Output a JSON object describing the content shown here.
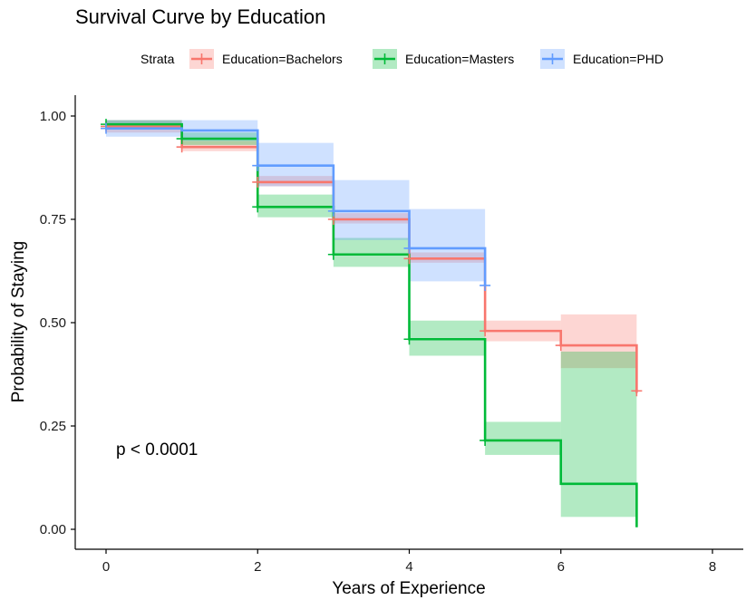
{
  "chart_data": {
    "type": "line",
    "title": "Survival Curve by Education",
    "xlabel": "Years of Experience",
    "ylabel": "Probability of Staying",
    "xlim": [
      0,
      8
    ],
    "ylim": [
      0,
      1
    ],
    "x_ticks": [
      "0",
      "2",
      "4",
      "6",
      "8"
    ],
    "y_ticks": [
      "0.00",
      "0.25",
      "0.50",
      "0.75",
      "1.00"
    ],
    "grid": false,
    "legend": {
      "title": "Strata",
      "position": "top"
    },
    "annotation": "p < 0.0001",
    "series": [
      {
        "name": "Education=Bachelors",
        "color": "#F8766D",
        "steps": [
          {
            "x0": 0,
            "x1": 1,
            "y": 0.975,
            "lo": 0.96,
            "hi": 0.99
          },
          {
            "x0": 1,
            "x1": 2,
            "y": 0.925,
            "lo": 0.915,
            "hi": 0.94
          },
          {
            "x0": 2,
            "x1": 3,
            "y": 0.84,
            "lo": 0.83,
            "hi": 0.855
          },
          {
            "x0": 3,
            "x1": 4,
            "y": 0.75,
            "lo": 0.74,
            "hi": 0.765
          },
          {
            "x0": 4,
            "x1": 5,
            "y": 0.655,
            "lo": 0.645,
            "hi": 0.67
          },
          {
            "x0": 5,
            "x1": 6,
            "y": 0.48,
            "lo": 0.455,
            "hi": 0.505
          },
          {
            "x0": 6,
            "x1": 7,
            "y": 0.445,
            "lo": 0.39,
            "hi": 0.52
          }
        ],
        "end_y": 0.33,
        "censor_x": [
          0,
          1,
          2,
          3,
          4,
          5,
          6,
          7
        ],
        "censor_y": [
          0.975,
          0.925,
          0.84,
          0.75,
          0.655,
          0.48,
          0.445,
          0.335
        ]
      },
      {
        "name": "Education=Masters",
        "color": "#00BA38",
        "steps": [
          {
            "x0": 0,
            "x1": 1,
            "y": 0.98,
            "lo": 0.97,
            "hi": 0.99
          },
          {
            "x0": 1,
            "x1": 2,
            "y": 0.945,
            "lo": 0.93,
            "hi": 0.96
          },
          {
            "x0": 2,
            "x1": 3,
            "y": 0.78,
            "lo": 0.755,
            "hi": 0.81
          },
          {
            "x0": 3,
            "x1": 4,
            "y": 0.665,
            "lo": 0.635,
            "hi": 0.705
          },
          {
            "x0": 4,
            "x1": 5,
            "y": 0.46,
            "lo": 0.42,
            "hi": 0.505
          },
          {
            "x0": 5,
            "x1": 6,
            "y": 0.215,
            "lo": 0.18,
            "hi": 0.26
          },
          {
            "x0": 6,
            "x1": 7,
            "y": 0.11,
            "lo": 0.03,
            "hi": 0.43
          }
        ],
        "end_y": 0.005,
        "censor_x": [
          0,
          1,
          2,
          3,
          4,
          5
        ],
        "censor_y": [
          0.98,
          0.945,
          0.78,
          0.665,
          0.46,
          0.215
        ]
      },
      {
        "name": "Education=PHD",
        "color": "#619CFF",
        "steps": [
          {
            "x0": 0,
            "x1": 1,
            "y": 0.97,
            "lo": 0.95,
            "hi": 0.99
          },
          {
            "x0": 1,
            "x1": 2,
            "y": 0.965,
            "lo": 0.94,
            "hi": 0.99
          },
          {
            "x0": 2,
            "x1": 3,
            "y": 0.88,
            "lo": 0.83,
            "hi": 0.935
          },
          {
            "x0": 3,
            "x1": 4,
            "y": 0.77,
            "lo": 0.7,
            "hi": 0.845
          },
          {
            "x0": 4,
            "x1": 5,
            "y": 0.68,
            "lo": 0.6,
            "hi": 0.775
          }
        ],
        "end_y": 0.59,
        "censor_x": [
          0,
          2,
          3,
          4,
          5
        ],
        "censor_y": [
          0.97,
          0.88,
          0.77,
          0.68,
          0.59
        ]
      }
    ]
  }
}
